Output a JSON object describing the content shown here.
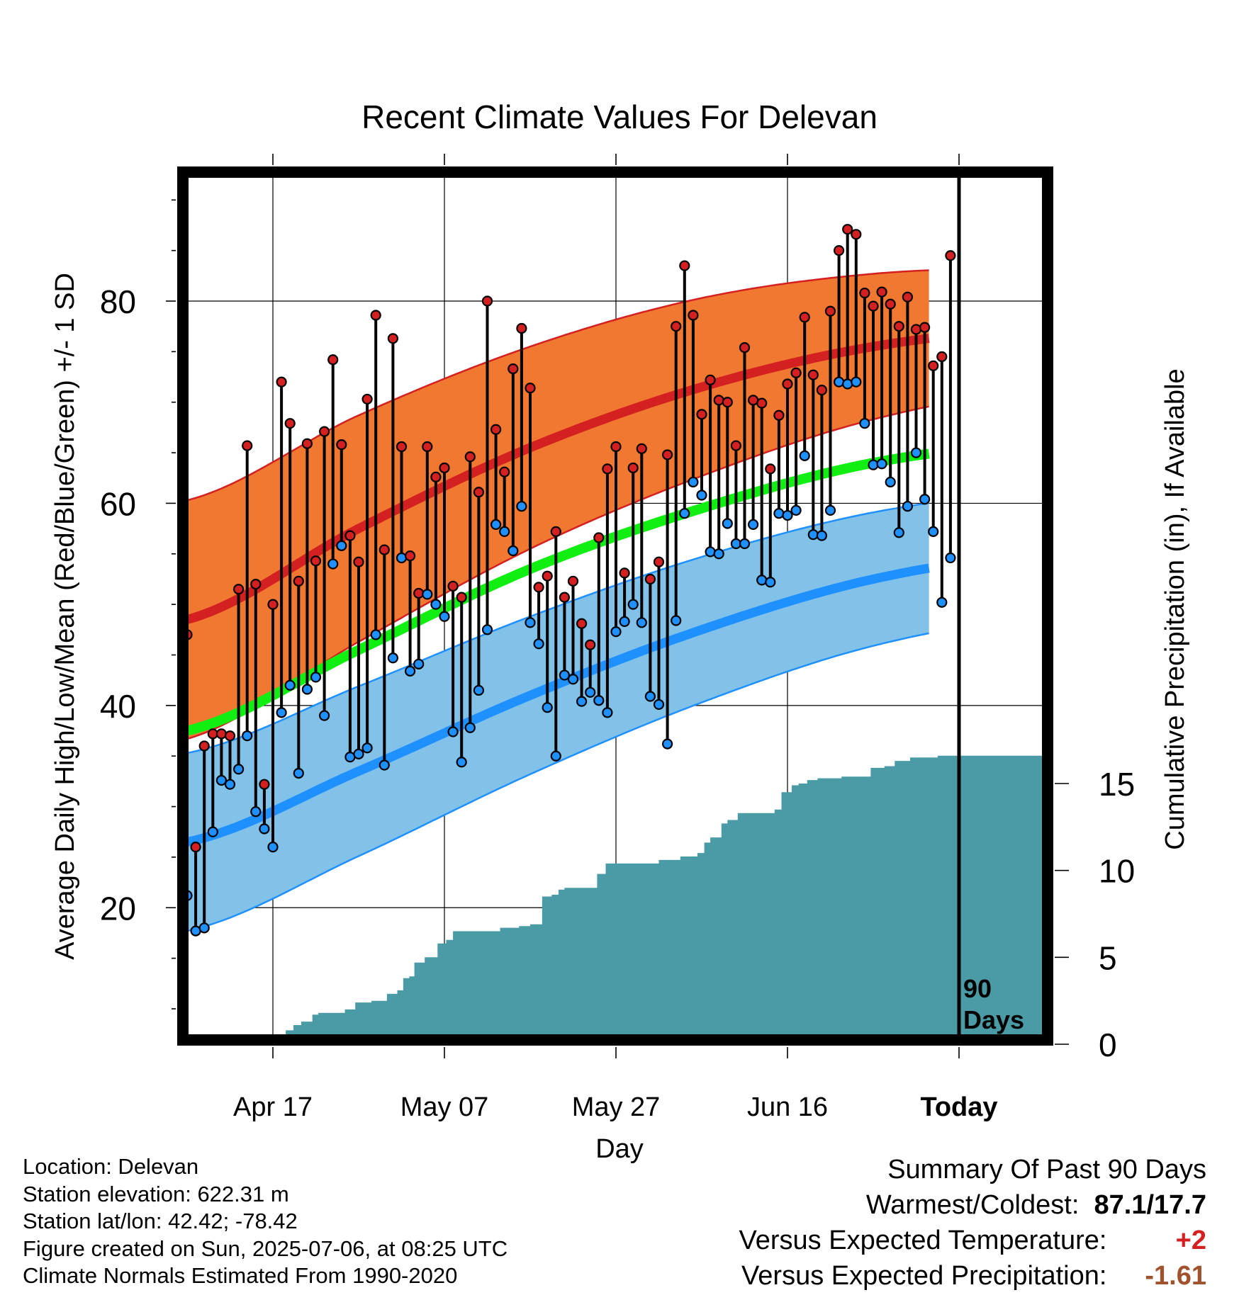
{
  "chart_data": {
    "type": "line",
    "title": "Recent Climate Values For Delevan",
    "xlabel": "Day",
    "ylabel": "Average Daily High/Low/Mean (Red/Blue/Green) +/- 1 SD",
    "y2label": "Cumulative Precipitation (in), If Available",
    "xticks": [
      "Apr 17",
      "May 07",
      "May 27",
      "Jun 16",
      "Today"
    ],
    "yticks": [
      20,
      40,
      60,
      80
    ],
    "y2ticks": [
      0,
      5,
      10,
      15
    ],
    "ylim": [
      7,
      93
    ],
    "y2lim": [
      0,
      34
    ],
    "xlim_days": [
      0,
      100
    ],
    "today_day": 90,
    "today_label": "90 Days",
    "grid": true,
    "colors": {
      "normal_high_band": "#f07830",
      "normal_high_line": "#d42020",
      "normal_mean_line": "#11ee11",
      "normal_low_band": "#82c2e8",
      "normal_low_line": "#1e90ff",
      "precip_fill": "#4a9ba5",
      "high_marker": "#d42020",
      "low_marker": "#1e90ff",
      "versus_temp": "#d42020",
      "versus_precip": "#a0522d"
    },
    "normal_high": {
      "days": [
        0,
        20,
        40,
        60,
        80,
        100
      ],
      "values": [
        48.5,
        57.5,
        65.5,
        71.5,
        75.5,
        77.3
      ]
    },
    "normal_high_sd": {
      "days": [
        0,
        20,
        40,
        60,
        80,
        100
      ],
      "values": [
        11.8,
        11.2,
        10.0,
        8.8,
        7.2,
        6.0
      ]
    },
    "normal_mean": {
      "days": [
        0,
        20,
        40,
        60,
        80,
        100
      ],
      "values": [
        37.5,
        45.5,
        53.5,
        59.5,
        64.0,
        66.0
      ]
    },
    "normal_low": {
      "days": [
        0,
        20,
        40,
        60,
        80,
        100
      ],
      "values": [
        26.5,
        33.5,
        41.0,
        47.5,
        52.5,
        55.0
      ]
    },
    "normal_low_sd": {
      "days": [
        0,
        20,
        40,
        60,
        80,
        100
      ],
      "values": [
        8.8,
        8.4,
        7.8,
        7.2,
        6.6,
        6.2
      ]
    },
    "daily_high": [
      47.0,
      26.0,
      36.0,
      37.2,
      37.2,
      37.0,
      51.5,
      65.7,
      52.0,
      32.2,
      50.0,
      72.0,
      67.9,
      52.3,
      65.9,
      54.3,
      67.1,
      74.2,
      65.8,
      56.8,
      54.2,
      70.3,
      78.6,
      55.4,
      76.3,
      65.6,
      54.8,
      51.1,
      65.6,
      62.6,
      63.5,
      51.8,
      50.7,
      64.6,
      61.1,
      80.0,
      67.3,
      63.1,
      73.3,
      77.3,
      71.4,
      51.7,
      52.8,
      57.2,
      50.7,
      52.3,
      48.1,
      46.0,
      56.6,
      63.4,
      65.6,
      53.1,
      63.5,
      65.4,
      52.5,
      54.2,
      64.8,
      77.5,
      83.5,
      78.6,
      68.8,
      72.2,
      70.2,
      70.0,
      65.7,
      75.4,
      70.2,
      69.9,
      63.4,
      68.7,
      71.8,
      72.9,
      78.4,
      72.7,
      71.2,
      79.0,
      85.0,
      87.1,
      86.6,
      80.8,
      79.5,
      80.9,
      79.7,
      77.5,
      80.4,
      77.2,
      77.4,
      73.6,
      74.5,
      84.5
    ],
    "daily_low": [
      21.2,
      17.7,
      18.0,
      27.5,
      32.6,
      32.2,
      33.7,
      37.0,
      29.5,
      27.8,
      26.0,
      39.3,
      42.0,
      33.3,
      41.6,
      42.8,
      39.0,
      54.0,
      55.8,
      34.9,
      35.2,
      35.8,
      47.0,
      34.1,
      44.7,
      54.6,
      43.4,
      44.1,
      51.0,
      50.0,
      48.8,
      37.4,
      34.4,
      37.8,
      41.5,
      47.5,
      57.9,
      57.2,
      55.3,
      59.7,
      48.2,
      46.1,
      39.8,
      35.0,
      43.0,
      42.6,
      40.4,
      41.3,
      40.5,
      39.3,
      47.3,
      48.3,
      50.0,
      48.2,
      40.9,
      40.1,
      36.2,
      48.4,
      59.0,
      62.1,
      60.8,
      55.2,
      55.0,
      58.0,
      56.0,
      56.0,
      57.9,
      52.4,
      52.2,
      59.0,
      58.8,
      59.3,
      64.7,
      56.9,
      56.8,
      59.3,
      72.0,
      71.8,
      72.0,
      67.9,
      63.8,
      63.9,
      62.1,
      57.1,
      59.7,
      65.0,
      60.4,
      57.2,
      50.2,
      54.6
    ],
    "precip": {
      "days": [
        0,
        10.7,
        11.5,
        12.4,
        13.3,
        14.6,
        15.3,
        16.0,
        17.7,
        18.4,
        19.6,
        21.5,
        22.6,
        23.3,
        24.5,
        25.2,
        25.9,
        26.5,
        27.7,
        29.2,
        30.2,
        31.0,
        36.5,
        38.7,
        40.0,
        41.4,
        42.5,
        43.3,
        44.0,
        45.3,
        47.8,
        48.8,
        55.0,
        57.5,
        59.5,
        60.3,
        61.0,
        62.3,
        63.0,
        64.2,
        68.5,
        69.3,
        70.5,
        71.3,
        72.3,
        73.5,
        76.3,
        77.8,
        79.7,
        81.3,
        82.5,
        84.3,
        87.5,
        100
      ],
      "values": [
        0,
        0,
        0.8,
        1.1,
        1.3,
        1.7,
        1.8,
        1.8,
        1.8,
        2.0,
        2.4,
        2.5,
        2.5,
        2.9,
        3.1,
        3.8,
        3.9,
        4.7,
        5.0,
        5.8,
        6.0,
        6.5,
        6.7,
        6.8,
        6.9,
        8.5,
        8.6,
        8.9,
        9.0,
        9.0,
        9.8,
        10.4,
        10.6,
        10.8,
        11.0,
        11.6,
        11.9,
        12.7,
        12.9,
        13.3,
        13.5,
        14.5,
        14.9,
        15.0,
        15.2,
        15.3,
        15.4,
        15.4,
        15.9,
        16.0,
        16.3,
        16.5,
        16.6,
        16.6
      ]
    }
  },
  "footer": {
    "location": "Location: Delevan",
    "elevation": "Station elevation: 622.31 m",
    "latlon": "Station lat/lon: 42.42; -78.42",
    "created": "Figure created on Sun, 2025-07-06, at 08:25 UTC",
    "normals": "Climate Normals Estimated From 1990-2020"
  },
  "summary": {
    "title": "Summary Of Past 90 Days",
    "warmest_coldest_label": "Warmest/Coldest:",
    "warmest_coldest_value": "87.1/17.7",
    "versus_temp_label": "Versus Expected Temperature:",
    "versus_temp_value": "+2",
    "versus_precip_label": "Versus Expected Precipitation:",
    "versus_precip_value": "-1.61"
  }
}
